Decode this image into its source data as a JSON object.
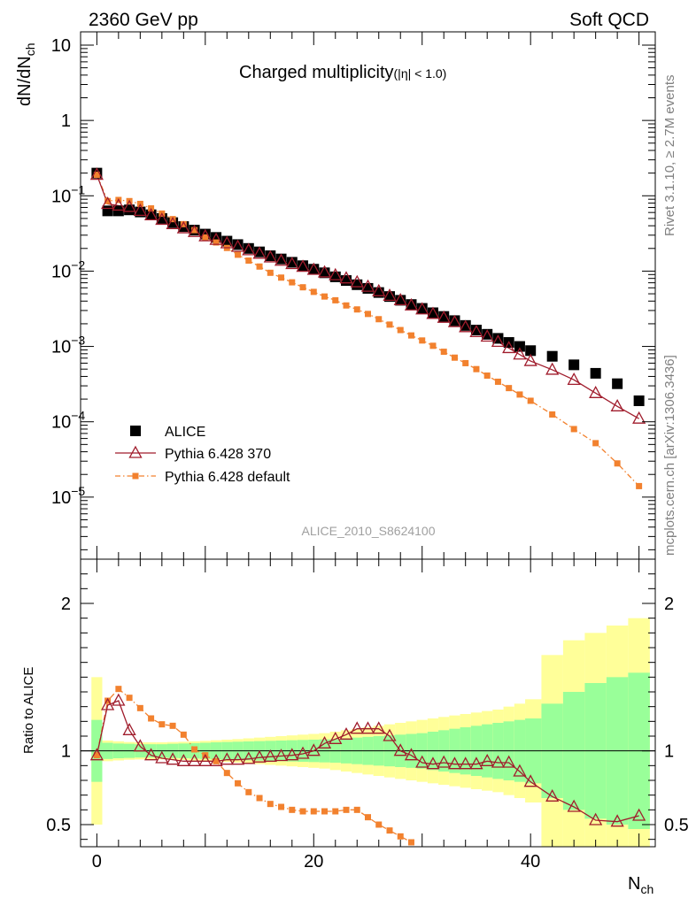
{
  "header": {
    "energy_label": "2360 GeV pp",
    "category_label": "Soft QCD",
    "side_rivet": "Rivet 3.1.10, ≥ 2.7M events",
    "side_ref": "mcplots.cern.ch [arXiv:1306.3436]",
    "analysis_id": "ALICE_2010_S8624100"
  },
  "chart_data": [
    {
      "type": "scatter",
      "title": "Charged multiplicity",
      "title_suffix": "(|η| < 1.0)",
      "ylabel": "dN/dN",
      "ylabel_sub": "ch",
      "yscale": "log",
      "ylim": [
        1.5e-06,
        15
      ],
      "xlim": [
        -1.5,
        51.5
      ],
      "y_ticks": [
        {
          "value": 10,
          "label": "10",
          "exp": ""
        },
        {
          "value": 1,
          "label": "1",
          "exp": ""
        },
        {
          "value": 0.1,
          "label": "10",
          "exp": "−1"
        },
        {
          "value": 0.01,
          "label": "10",
          "exp": "−2"
        },
        {
          "value": 0.001,
          "label": "10",
          "exp": "−3"
        },
        {
          "value": 0.0001,
          "label": "10",
          "exp": "−4"
        },
        {
          "value": 1e-05,
          "label": "10",
          "exp": "−5"
        }
      ],
      "legend": [
        {
          "label": "ALICE",
          "color": "#000000",
          "marker": "square"
        },
        {
          "label": "Pythia 6.428 370",
          "color": "#a01c2c",
          "marker": "triangle"
        },
        {
          "label": "Pythia 6.428 default",
          "color": "#f2812e",
          "marker": "square-small"
        }
      ],
      "series": [
        {
          "name": "ALICE",
          "color": "#000000",
          "x": [
            0,
            1,
            2,
            3,
            4,
            5,
            6,
            7,
            8,
            9,
            10,
            11,
            12,
            13,
            14,
            15,
            16,
            17,
            18,
            19,
            20,
            21,
            22,
            23,
            24,
            25,
            26,
            27,
            28,
            29,
            30,
            31,
            32,
            33,
            34,
            35,
            36,
            37,
            38,
            39,
            40,
            42,
            44,
            46,
            48,
            50
          ],
          "y": [
            0.2,
            0.063,
            0.063,
            0.065,
            0.061,
            0.056,
            0.05,
            0.044,
            0.039,
            0.035,
            0.031,
            0.028,
            0.025,
            0.0225,
            0.02,
            0.018,
            0.016,
            0.0145,
            0.0131,
            0.0118,
            0.0106,
            0.0095,
            0.0084,
            0.0075,
            0.0066,
            0.0059,
            0.0052,
            0.0046,
            0.0041,
            0.0036,
            0.0032,
            0.0028,
            0.0025,
            0.0022,
            0.0019,
            0.00165,
            0.00145,
            0.00128,
            0.00113,
            0.001,
            0.00088,
            0.00074,
            0.00057,
            0.00044,
            0.00032,
            0.00019
          ]
        },
        {
          "name": "Pythia 6.428 370",
          "color": "#a01c2c",
          "x": [
            0,
            1,
            2,
            3,
            4,
            5,
            6,
            7,
            8,
            9,
            10,
            11,
            12,
            13,
            14,
            15,
            16,
            17,
            18,
            19,
            20,
            21,
            22,
            23,
            24,
            25,
            26,
            27,
            28,
            29,
            30,
            31,
            32,
            33,
            34,
            35,
            36,
            37,
            38,
            39,
            40,
            42,
            44,
            46,
            48,
            50
          ],
          "y": [
            0.19,
            0.078,
            0.074,
            0.071,
            0.063,
            0.055,
            0.048,
            0.042,
            0.037,
            0.033,
            0.029,
            0.026,
            0.0234,
            0.021,
            0.0189,
            0.017,
            0.0152,
            0.0137,
            0.0124,
            0.0114,
            0.0104,
            0.0096,
            0.0088,
            0.008,
            0.0071,
            0.0062,
            0.0054,
            0.0047,
            0.0041,
            0.0035,
            0.0031,
            0.0027,
            0.0024,
            0.0021,
            0.0018,
            0.00155,
            0.00135,
            0.00115,
            0.00095,
            0.00078,
            0.00064,
            0.00049,
            0.00036,
            0.00024,
            0.00016,
            0.00011
          ]
        },
        {
          "name": "Pythia 6.428 default",
          "color": "#f2812e",
          "x": [
            0,
            1,
            2,
            3,
            4,
            5,
            6,
            7,
            8,
            9,
            10,
            11,
            12,
            13,
            14,
            15,
            16,
            17,
            18,
            19,
            20,
            21,
            22,
            23,
            24,
            25,
            26,
            27,
            28,
            29,
            30,
            31,
            32,
            33,
            34,
            35,
            36,
            37,
            38,
            39,
            40,
            42,
            44,
            46,
            48,
            50
          ],
          "y": [
            0.19,
            0.085,
            0.088,
            0.085,
            0.078,
            0.068,
            0.058,
            0.049,
            0.042,
            0.035,
            0.028,
            0.024,
            0.0203,
            0.0165,
            0.0138,
            0.0115,
            0.0095,
            0.0082,
            0.0071,
            0.0061,
            0.0053,
            0.0046,
            0.0041,
            0.0035,
            0.0031,
            0.0027,
            0.0023,
            0.00195,
            0.00165,
            0.0014,
            0.0012,
            0.00102,
            0.00085,
            0.00071,
            0.0006,
            0.0005,
            0.00041,
            0.00034,
            0.00028,
            0.00023,
            0.00019,
            0.000125,
            8e-05,
            5.2e-05,
            2.8e-05,
            1.4e-05
          ]
        }
      ]
    },
    {
      "type": "line",
      "ylabel": "Ratio to ALICE",
      "xlabel": "N",
      "xlabel_sub": "ch",
      "ylim": [
        0.35,
        2.3
      ],
      "xlim": [
        -1.5,
        51.5
      ],
      "x_ticks": [
        0,
        20,
        40
      ],
      "y_ticks": [
        0.5,
        1,
        2
      ],
      "reference": 1,
      "bands": {
        "x_edges": [
          -0.5,
          0.5,
          1.5,
          2.5,
          3.5,
          4.5,
          5.5,
          6.5,
          7.5,
          8.5,
          9.5,
          10.5,
          11.5,
          12.5,
          13.5,
          14.5,
          15.5,
          16.5,
          17.5,
          18.5,
          19.5,
          20.5,
          21.5,
          22.5,
          23.5,
          24.5,
          25.5,
          26.5,
          27.5,
          28.5,
          29.5,
          30.5,
          31.5,
          32.5,
          33.5,
          34.5,
          35.5,
          36.5,
          37.5,
          38.5,
          39.5,
          41.0,
          43.0,
          45.0,
          47.0,
          49.0,
          51.0
        ],
        "stat_color": "#99ff99",
        "total_color": "#ffff99",
        "stat_half_width": [
          0.21,
          0.055,
          0.05,
          0.048,
          0.045,
          0.045,
          0.045,
          0.048,
          0.05,
          0.052,
          0.055,
          0.058,
          0.06,
          0.062,
          0.064,
          0.066,
          0.068,
          0.07,
          0.072,
          0.074,
          0.076,
          0.078,
          0.08,
          0.085,
          0.09,
          0.095,
          0.1,
          0.105,
          0.11,
          0.115,
          0.12,
          0.13,
          0.14,
          0.15,
          0.16,
          0.17,
          0.18,
          0.19,
          0.2,
          0.21,
          0.22,
          0.32,
          0.4,
          0.46,
          0.5,
          0.53
        ],
        "total_half_width": [
          0.5,
          0.07,
          0.065,
          0.06,
          0.058,
          0.058,
          0.058,
          0.06,
          0.062,
          0.065,
          0.068,
          0.072,
          0.076,
          0.08,
          0.085,
          0.09,
          0.095,
          0.1,
          0.105,
          0.11,
          0.115,
          0.12,
          0.13,
          0.14,
          0.15,
          0.16,
          0.17,
          0.18,
          0.19,
          0.2,
          0.21,
          0.22,
          0.23,
          0.24,
          0.25,
          0.26,
          0.27,
          0.28,
          0.3,
          0.32,
          0.35,
          0.65,
          0.75,
          0.8,
          0.85,
          0.9
        ]
      },
      "series": [
        {
          "name": "Pythia 6.428 370",
          "color": "#a01c2c",
          "x": [
            0,
            1,
            2,
            3,
            4,
            5,
            6,
            7,
            8,
            9,
            10,
            11,
            12,
            13,
            14,
            15,
            16,
            17,
            18,
            19,
            20,
            21,
            22,
            23,
            24,
            25,
            26,
            27,
            28,
            29,
            30,
            31,
            32,
            33,
            34,
            35,
            36,
            37,
            38,
            39,
            40,
            42,
            44,
            46,
            48,
            50
          ],
          "y": [
            0.97,
            1.31,
            1.34,
            1.14,
            1.03,
            0.97,
            0.95,
            0.94,
            0.93,
            0.93,
            0.93,
            0.93,
            0.94,
            0.94,
            0.945,
            0.955,
            0.96,
            0.965,
            0.97,
            0.98,
            1.0,
            1.05,
            1.08,
            1.11,
            1.15,
            1.15,
            1.15,
            1.1,
            1.0,
            0.97,
            0.92,
            0.91,
            0.92,
            0.91,
            0.91,
            0.91,
            0.93,
            0.92,
            0.92,
            0.86,
            0.79,
            0.69,
            0.62,
            0.53,
            0.52,
            0.56
          ]
        },
        {
          "name": "Pythia 6.428 default",
          "color": "#f2812e",
          "x": [
            0,
            1,
            2,
            3,
            4,
            5,
            6,
            7,
            8,
            9,
            10,
            11,
            12,
            13,
            14,
            15,
            16,
            17,
            18,
            19,
            20,
            21,
            22,
            23,
            24,
            25,
            26,
            27,
            28,
            29
          ],
          "y": [
            0.97,
            1.34,
            1.42,
            1.36,
            1.29,
            1.22,
            1.18,
            1.17,
            1.11,
            1.01,
            0.97,
            0.93,
            0.85,
            0.78,
            0.72,
            0.68,
            0.64,
            0.62,
            0.6,
            0.59,
            0.59,
            0.59,
            0.59,
            0.6,
            0.6,
            0.55,
            0.5,
            0.46,
            0.42,
            0.38
          ]
        }
      ]
    }
  ]
}
